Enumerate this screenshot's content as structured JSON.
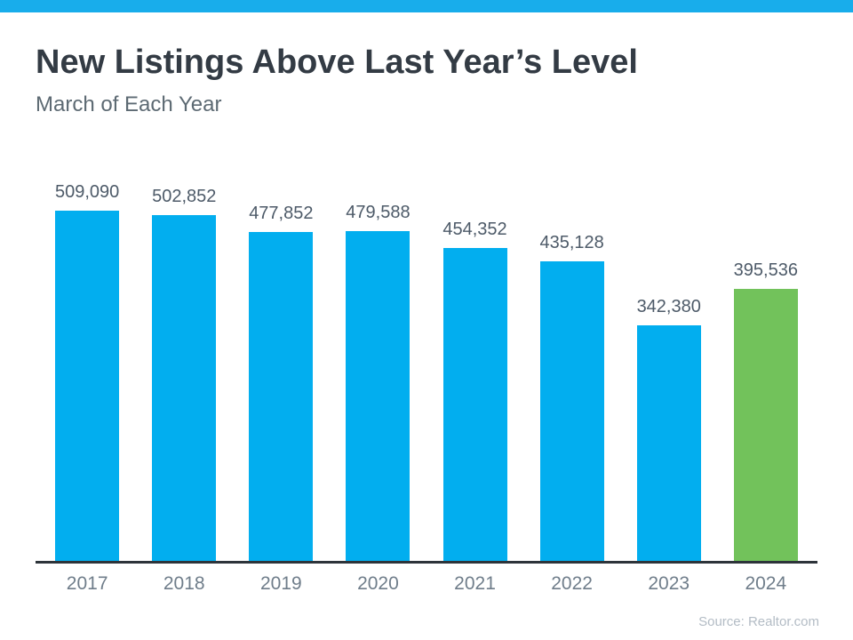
{
  "header": {
    "title": "New Listings Above Last Year’s Level",
    "subtitle": "March of Each Year"
  },
  "footer": {
    "source": "Source: Realtor.com"
  },
  "colors": {
    "accent_strip": "#18adeb",
    "bar_blue": "#02aeef",
    "bar_green": "#72c25b",
    "axis_line": "#2d343a"
  },
  "chart_data": {
    "type": "bar",
    "title": "New Listings Above Last Year’s Level",
    "subtitle": "March of Each Year",
    "categories": [
      "2017",
      "2018",
      "2019",
      "2020",
      "2021",
      "2022",
      "2023",
      "2024"
    ],
    "values": [
      509090,
      502852,
      477852,
      479588,
      454352,
      435128,
      342380,
      395536
    ],
    "value_labels": [
      "509,090",
      "502,852",
      "477,852",
      "479,588",
      "454,352",
      "435,128",
      "342,380",
      "395,536"
    ],
    "highlight_index": 7,
    "xlabel": "",
    "ylabel": "",
    "ylim": [
      0,
      520000
    ],
    "grid": false,
    "legend": false,
    "data_labels_position": "above-bar",
    "axis_line_visible": true,
    "y_axis_ticks_visible": false
  }
}
